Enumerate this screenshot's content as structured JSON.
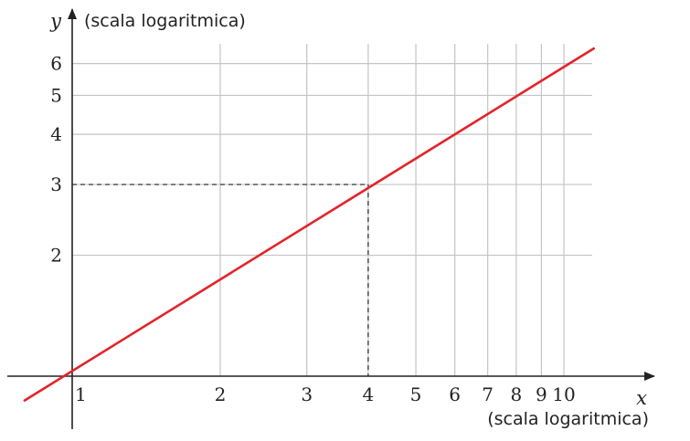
{
  "chart_data": {
    "type": "line",
    "title": "",
    "xlabel": "x",
    "xlabel_note": "(scala logaritmica)",
    "ylabel": "y",
    "ylabel_note": "(scala logaritmica)",
    "xscale": "log",
    "yscale": "log",
    "grid": true,
    "xlim": [
      1,
      10
    ],
    "ylim": [
      1,
      6
    ],
    "x_ticks": [
      1,
      2,
      3,
      4,
      5,
      6,
      7,
      8,
      9,
      10
    ],
    "x_tick_labels": [
      "1",
      "2",
      "3",
      "4",
      "5",
      "6",
      "7",
      "8",
      "9",
      "10"
    ],
    "y_ticks": [
      2,
      3,
      4,
      5,
      6
    ],
    "y_tick_labels": [
      "2",
      "3",
      "4",
      "5",
      "6"
    ],
    "series": [
      {
        "x": [
          0.8,
          11.5
        ],
        "y": [
          0.87,
          6.54
        ],
        "color": "#e3242b"
      }
    ],
    "reference_point": {
      "x": 4,
      "y": 3,
      "style": "dashed"
    }
  }
}
